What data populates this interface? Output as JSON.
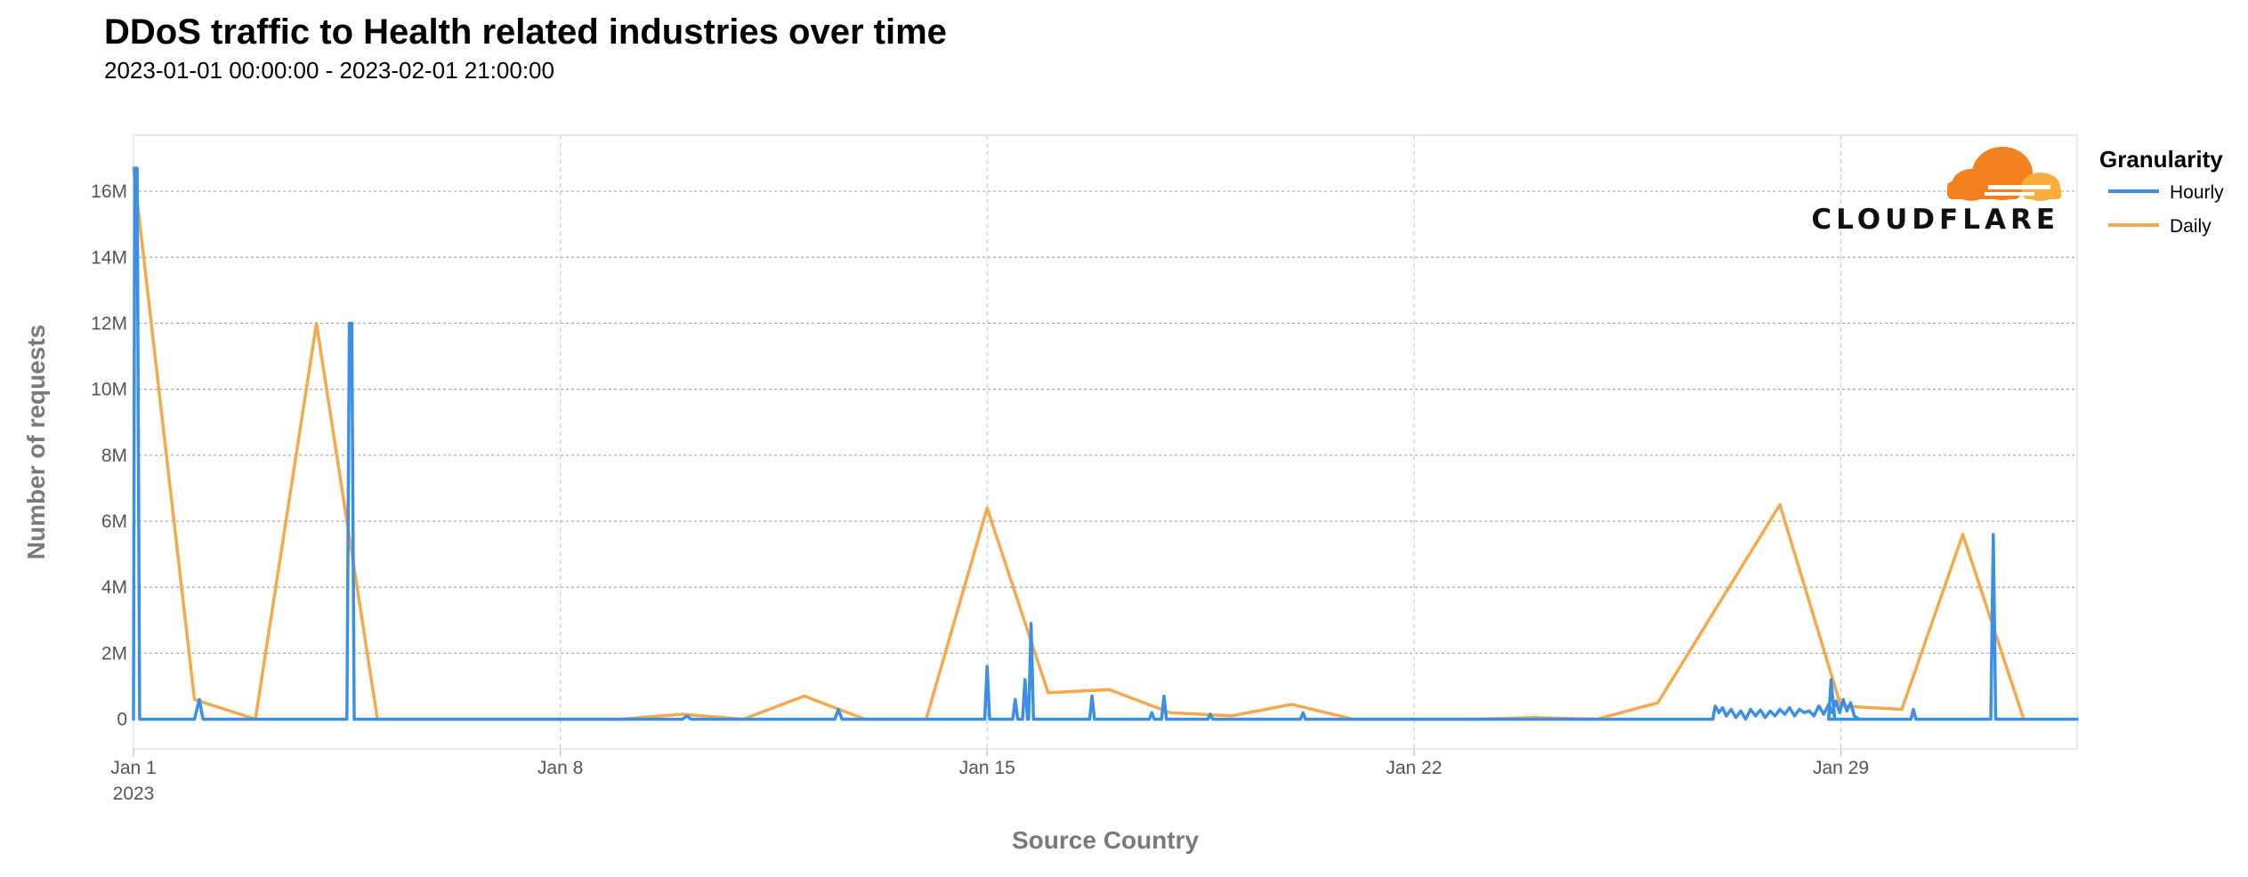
{
  "chart_data": {
    "type": "line",
    "title": "DDoS traffic to Health related industries over time",
    "subtitle": "2023-01-01 00:00:00 - 2023-02-01 21:00:00",
    "xlabel": "Source Country",
    "ylabel": "Number of requests",
    "x_axis": {
      "type": "time",
      "range_days": [
        0,
        31.875
      ],
      "ticks": [
        {
          "day": 0,
          "label": "Jan 1",
          "sublabel": "2023"
        },
        {
          "day": 7,
          "label": "Jan 8"
        },
        {
          "day": 14,
          "label": "Jan 15"
        },
        {
          "day": 21,
          "label": "Jan 22"
        },
        {
          "day": 28,
          "label": "Jan 29"
        }
      ]
    },
    "y_axis": {
      "ylim": [
        -900000,
        17700000
      ],
      "ticks": [
        {
          "value": 0,
          "label": "0"
        },
        {
          "value": 2000000,
          "label": "2M"
        },
        {
          "value": 4000000,
          "label": "4M"
        },
        {
          "value": 6000000,
          "label": "6M"
        },
        {
          "value": 8000000,
          "label": "8M"
        },
        {
          "value": 10000000,
          "label": "10M"
        },
        {
          "value": 12000000,
          "label": "12M"
        },
        {
          "value": 14000000,
          "label": "14M"
        },
        {
          "value": 16000000,
          "label": "16M"
        }
      ]
    },
    "grid": true,
    "legend": {
      "title": "Granularity",
      "position": "top-right"
    },
    "series": [
      {
        "name": "Hourly",
        "color": "#3b8fe8",
        "points": [
          [
            0,
            0
          ],
          [
            0.02,
            16700000
          ],
          [
            0.06,
            16700000
          ],
          [
            0.1,
            0
          ],
          [
            1.0,
            0
          ],
          [
            1.08,
            600000
          ],
          [
            1.14,
            0
          ],
          [
            3.5,
            0
          ],
          [
            3.54,
            12000000
          ],
          [
            3.58,
            12000000
          ],
          [
            3.62,
            0
          ],
          [
            9.0,
            0
          ],
          [
            9.08,
            100000
          ],
          [
            9.14,
            0
          ],
          [
            11.5,
            0
          ],
          [
            11.56,
            300000
          ],
          [
            11.62,
            0
          ],
          [
            13.96,
            0
          ],
          [
            14.0,
            1600000
          ],
          [
            14.04,
            0
          ],
          [
            14.42,
            0
          ],
          [
            14.46,
            600000
          ],
          [
            14.5,
            0
          ],
          [
            14.58,
            0
          ],
          [
            14.62,
            1200000
          ],
          [
            14.66,
            0
          ],
          [
            14.68,
            0
          ],
          [
            14.72,
            2900000
          ],
          [
            14.76,
            0
          ],
          [
            15.68,
            0
          ],
          [
            15.72,
            700000
          ],
          [
            15.76,
            0
          ],
          [
            16.66,
            0
          ],
          [
            16.7,
            200000
          ],
          [
            16.74,
            0
          ],
          [
            16.86,
            0
          ],
          [
            16.9,
            700000
          ],
          [
            16.94,
            0
          ],
          [
            17.62,
            0
          ],
          [
            17.66,
            150000
          ],
          [
            17.7,
            0
          ],
          [
            19.14,
            0
          ],
          [
            19.18,
            200000
          ],
          [
            19.22,
            0
          ],
          [
            25.9,
            0
          ],
          [
            25.94,
            400000
          ],
          [
            26.0,
            200000
          ],
          [
            26.06,
            350000
          ],
          [
            26.12,
            100000
          ],
          [
            26.2,
            300000
          ],
          [
            26.28,
            50000
          ],
          [
            26.36,
            250000
          ],
          [
            26.44,
            0
          ],
          [
            26.52,
            300000
          ],
          [
            26.6,
            100000
          ],
          [
            26.68,
            280000
          ],
          [
            26.76,
            50000
          ],
          [
            26.84,
            250000
          ],
          [
            26.92,
            100000
          ],
          [
            27.0,
            300000
          ],
          [
            27.08,
            150000
          ],
          [
            27.16,
            350000
          ],
          [
            27.24,
            100000
          ],
          [
            27.32,
            300000
          ],
          [
            27.4,
            200000
          ],
          [
            27.48,
            250000
          ],
          [
            27.56,
            100000
          ],
          [
            27.64,
            400000
          ],
          [
            27.72,
            150000
          ],
          [
            27.8,
            450000
          ],
          [
            27.86,
            200000
          ],
          [
            27.92,
            550000
          ],
          [
            27.98,
            200000
          ],
          [
            28.04,
            600000
          ],
          [
            28.1,
            250000
          ],
          [
            28.16,
            500000
          ],
          [
            28.22,
            100000
          ],
          [
            28.3,
            0
          ],
          [
            27.8,
            0
          ],
          [
            27.84,
            1200000
          ],
          [
            27.9,
            0
          ],
          [
            29.15,
            0
          ],
          [
            29.19,
            300000
          ],
          [
            29.23,
            0
          ],
          [
            30.46,
            0
          ],
          [
            30.5,
            5600000
          ],
          [
            30.54,
            0
          ],
          [
            31.875,
            0
          ]
        ]
      },
      {
        "name": "Daily",
        "color": "#f6a94a",
        "points": [
          [
            0,
            16700000
          ],
          [
            1,
            600000
          ],
          [
            2,
            0
          ],
          [
            3,
            12000000
          ],
          [
            4,
            0
          ],
          [
            5,
            0
          ],
          [
            6,
            0
          ],
          [
            7,
            0
          ],
          [
            8,
            0
          ],
          [
            9,
            150000
          ],
          [
            10,
            0
          ],
          [
            11,
            700000
          ],
          [
            12,
            0
          ],
          [
            13,
            0
          ],
          [
            14,
            6400000
          ],
          [
            15,
            800000
          ],
          [
            16,
            900000
          ],
          [
            17,
            200000
          ],
          [
            18,
            100000
          ],
          [
            19,
            450000
          ],
          [
            20,
            0
          ],
          [
            21,
            0
          ],
          [
            22,
            0
          ],
          [
            23,
            50000
          ],
          [
            24,
            0
          ],
          [
            25,
            500000
          ],
          [
            27,
            6500000
          ],
          [
            28,
            400000
          ],
          [
            29,
            300000
          ],
          [
            30,
            5600000
          ],
          [
            31,
            0
          ]
        ]
      }
    ]
  },
  "logo": {
    "name": "cloudflare-logo",
    "text": "CLOUDFLARE",
    "orange": "#f48120",
    "light_orange": "#faad3f"
  }
}
